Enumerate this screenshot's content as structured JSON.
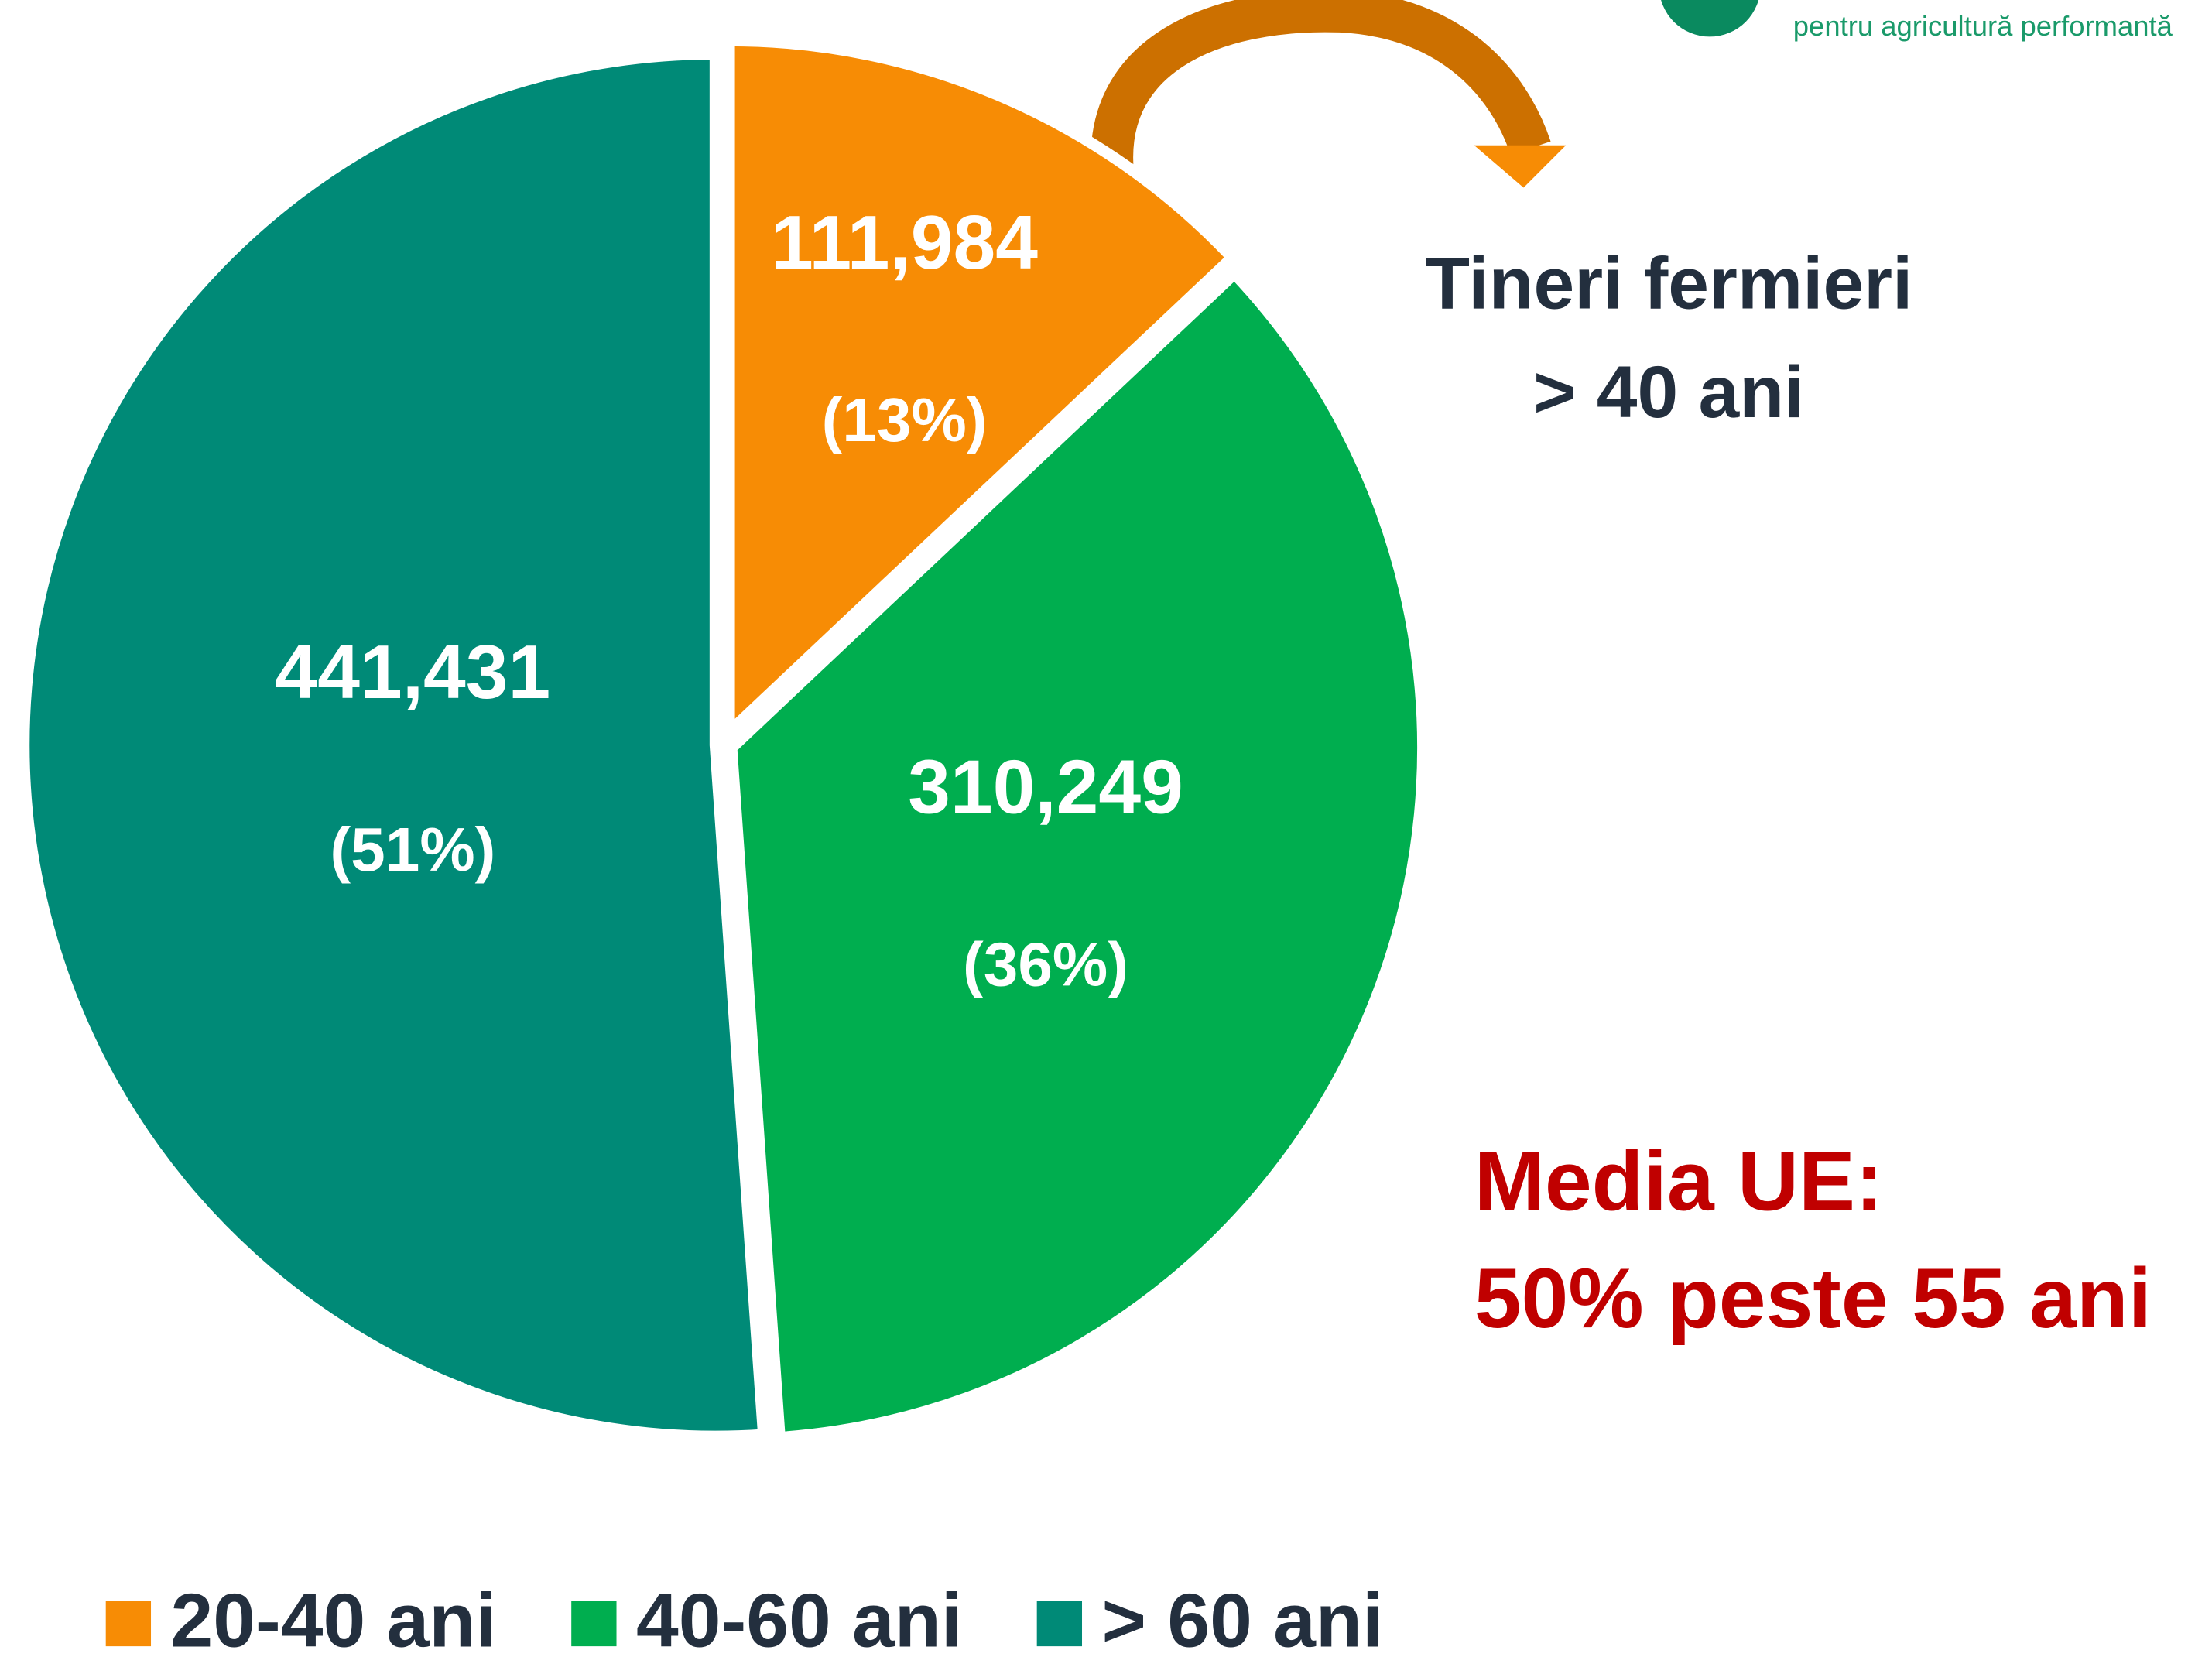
{
  "chart_data": {
    "type": "pie",
    "categories": [
      "20-40 ani",
      "40-60 ani",
      "> 60 ani"
    ],
    "values": [
      111984,
      310249,
      441431
    ],
    "value_labels": [
      "111,984",
      "310,249",
      "441,431"
    ],
    "percents": [
      13,
      36,
      51
    ],
    "percent_labels": [
      "(13%)",
      "(36%)",
      "(51%)"
    ],
    "colors": [
      "#f78c05",
      "#00ae4f",
      "#008a77"
    ],
    "legend": "bottom",
    "annotations": [
      "Tineri fermieri",
      "> 40 ani",
      "Media UE:",
      "50% peste 55 ani"
    ],
    "logo_text": "pentru agricultură performantă"
  }
}
